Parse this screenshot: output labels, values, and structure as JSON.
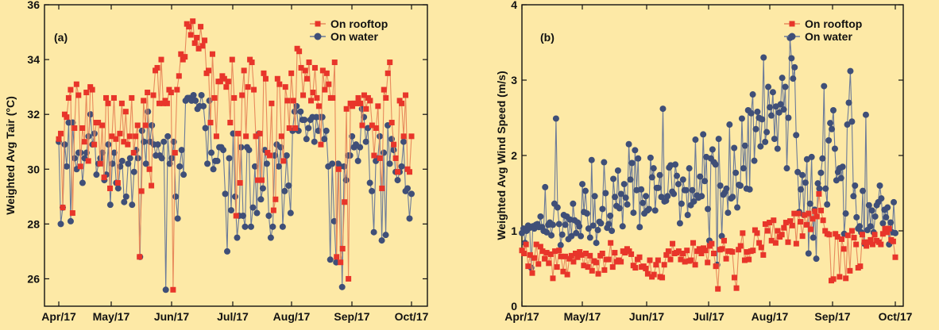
{
  "colors": {
    "background": "#fde9a6",
    "rooftop": "#e8352a",
    "water": "#3f4f78",
    "line_rooftop": "#e88a5c",
    "line_water": "#6b7a99"
  },
  "chart_data": [
    {
      "type": "line",
      "panel_label": "(a)",
      "ylabel": "Weighted Avg Tair (°C)",
      "xlabel": "",
      "ylim": [
        25,
        36
      ],
      "yticks": [
        26,
        28,
        30,
        32,
        34,
        36
      ],
      "x_tick_labels": [
        "Apr/17",
        "May/17",
        "Jun/17",
        "Jul/17",
        "Aug/17",
        "Sep/17",
        "Oct/17"
      ],
      "x_range_days": [
        0,
        183
      ],
      "legend_placement": "top-right",
      "series": [
        {
          "name": "On rooftop",
          "marker": "square",
          "values": [
            31.1,
            31.3,
            28.6,
            32.0,
            31.9,
            32.6,
            32.9,
            28.4,
            31.5,
            33.1,
            32.7,
            30.1,
            31.5,
            31.0,
            32.8,
            30.3,
            33.0,
            32.9,
            30.9,
            31.7,
            31.7,
            30.2,
            31.6,
            29.7,
            32.6,
            32.4,
            29.3,
            31.2,
            32.6,
            31.1,
            29.5,
            31.3,
            32.4,
            31.0,
            32.1,
            30.9,
            31.2,
            32.6,
            30.6,
            31.2,
            31.6,
            26.8,
            29.2,
            32.5,
            31.6,
            32.8,
            30.0,
            29.4,
            32.7,
            33.6,
            33.7,
            32.4,
            34.0,
            32.4,
            32.5,
            32.4,
            32.9,
            32.8,
            25.6,
            30.6,
            32.9,
            33.4,
            34.2,
            34.0,
            34.1,
            35.3,
            35.2,
            34.9,
            35.4,
            34.6,
            34.8,
            34.4,
            35.2,
            34.5,
            34.7,
            33.5,
            33.6,
            31.7,
            34.2,
            32.6,
            31.2,
            33.2,
            33.2,
            33.4,
            33.3,
            33.0,
            33.2,
            31.7,
            34.0,
            32.6,
            28.3,
            31.3,
            29.5,
            32.7,
            33.6,
            31.2,
            33.0,
            34.0,
            33.9,
            32.9,
            31.2,
            29.6,
            31.3,
            29.6,
            33.5,
            33.3,
            30.6,
            30.5,
            32.4,
            28.5,
            28.9,
            33.3,
            33.1,
            31.2,
            30.3,
            33.0,
            32.5,
            31.5,
            33.5,
            32.5,
            31.5,
            34.4,
            34.3,
            33.7,
            32.7,
            33.6,
            33.3,
            33.9,
            32.5,
            32.8,
            33.7,
            32.6,
            32.3,
            30.9,
            33.6,
            32.9,
            33.5,
            33.1,
            32.6,
            32.6,
            33.9,
            26.8,
            30.0,
            26.6,
            27.1,
            28.8,
            32.2,
            26.0,
            32.4,
            32.3,
            32.4,
            32.4,
            32.6,
            32.4,
            31.6,
            32.7,
            32.2,
            32.6,
            32.5,
            31.6,
            30.5,
            31.5,
            32.3,
            30.4,
            29.3,
            32.9,
            32.6,
            33.5,
            33.9,
            31.7,
            30.9,
            30.4,
            29.9,
            32.5,
            32.4,
            31.2,
            32.7,
            30.0,
            29.9,
            31.2
          ]
        },
        {
          "name": "On water",
          "marker": "circle",
          "values": [
            31.0,
            28.0,
            28.6,
            30.9,
            30.1,
            31.7,
            28.1,
            31.7,
            30.4,
            30.0,
            30.6,
            30.6,
            29.5,
            30.4,
            30.6,
            31.2,
            32.0,
            30.9,
            31.3,
            29.8,
            30.2,
            30.4,
            30.6,
            29.6,
            29.8,
            30.9,
            28.7,
            30.2,
            30.6,
            29.5,
            29.3,
            30.1,
            30.3,
            28.8,
            29.0,
            30.2,
            30.4,
            28.7,
            29.9,
            30.7,
            30.4,
            26.8,
            31.4,
            31.0,
            30.2,
            32.1,
            31.0,
            31.6,
            30.9,
            30.5,
            30.9,
            30.5,
            30.4,
            31.0,
            25.6,
            31.2,
            30.2,
            30.4,
            31.0,
            29.0,
            28.2,
            30.1,
            30.7,
            29.8,
            32.5,
            32.6,
            32.6,
            32.5,
            32.7,
            32.5,
            32.2,
            32.3,
            32.7,
            32.3,
            31.5,
            30.2,
            32.5,
            30.6,
            30.0,
            30.3,
            30.3,
            30.8,
            30.8,
            30.7,
            29.1,
            27.0,
            30.4,
            28.5,
            31.3,
            29.0,
            27.5,
            28.3,
            30.8,
            28.3,
            27.9,
            30.8,
            30.7,
            27.9,
            28.6,
            30.1,
            28.4,
            31.3,
            28.9,
            29.3,
            30.7,
            30.2,
            28.3,
            27.5,
            27.9,
            30.5,
            30.9,
            30.1,
            30.8,
            27.9,
            29.2,
            30.5,
            29.4,
            28.4,
            31.4,
            32.1,
            32.3,
            31.4,
            32.1,
            31.8,
            31.8,
            31.1,
            31.5,
            31.8,
            31.9,
            31.0,
            31.9,
            31.4,
            31.9,
            31.9,
            31.1,
            31.4,
            30.1,
            26.7,
            30.2,
            28.1,
            26.6,
            30.2,
            30.1,
            25.7,
            30.1,
            29.6,
            30.5,
            30.5,
            31.2,
            30.8,
            30.9,
            30.3,
            30.8,
            32.2,
            31.9,
            31.0,
            31.5,
            29.5,
            29.2,
            27.7,
            30.3,
            30.4,
            31.2,
            27.4,
            30.6,
            27.6,
            31.6,
            30.2,
            31.1,
            30.7,
            29.9,
            29.6,
            29.9,
            30.1,
            31.0,
            29.2,
            29.3,
            28.2,
            29.1
          ]
        }
      ]
    },
    {
      "type": "line",
      "panel_label": "(b)",
      "ylabel": "Weighted Avg Wind Speed (m/s)",
      "xlabel": "",
      "ylim": [
        0,
        4
      ],
      "yticks": [
        0,
        1,
        2,
        3,
        4
      ],
      "x_tick_labels": [
        "Apr/17",
        "May/17",
        "Jun/17",
        "Jul/17",
        "Aug/17",
        "Sep/17",
        "Oct/17"
      ],
      "x_range_days": [
        0,
        183
      ],
      "legend_placement": "top-right",
      "series": [
        {
          "name": "On rooftop",
          "marker": "square",
          "values": [
            0.74,
            0.7,
            0.82,
            0.53,
            0.68,
            0.44,
            0.64,
            0.82,
            0.56,
            0.79,
            0.73,
            0.63,
            0.71,
            0.57,
            0.69,
            0.37,
            0.73,
            0.52,
            0.74,
            0.66,
            0.46,
            0.66,
            0.42,
            0.63,
            0.67,
            0.59,
            0.7,
            0.65,
            0.72,
            0.68,
            0.54,
            0.7,
            0.52,
            0.67,
            0.47,
            0.6,
            0.58,
            0.43,
            0.67,
            0.7,
            0.48,
            0.62,
            0.62,
            0.84,
            0.52,
            0.71,
            0.59,
            0.61,
            0.59,
            0.73,
            0.71,
            0.76,
            0.73,
            0.69,
            0.54,
            0.51,
            0.62,
            0.65,
            0.52,
            0.53,
            0.5,
            0.43,
            0.61,
            0.39,
            0.42,
            0.55,
            0.61,
            0.39,
            0.38,
            0.55,
            0.68,
            0.73,
            0.62,
            0.83,
            0.7,
            0.71,
            0.73,
            0.62,
            0.7,
            0.59,
            0.74,
            0.6,
            0.61,
            0.84,
            0.55,
            0.73,
            0.76,
            0.7,
            0.77,
            0.74,
            0.58,
            0.8,
            0.83,
            0.7,
            0.53,
            0.23,
            0.75,
            0.76,
            0.87,
            0.63,
            0.73,
            0.73,
            0.72,
            0.38,
            0.24,
            0.75,
            0.8,
            0.97,
            0.61,
            0.72,
            0.62,
            0.73,
            0.74,
            1.01,
            0.97,
            0.84,
            0.78,
            0.68,
            1.09,
            1.0,
            1.11,
            0.87,
            1.14,
            0.84,
            1.0,
            0.92,
            0.95,
            1.04,
            1.11,
            0.85,
            1.13,
            1.07,
            1.23,
            0.83,
            1.23,
            1.12,
            0.93,
            1.21,
            1.08,
            1.23,
            1.02,
            1.16,
            1.26,
            1.19,
            1.49,
            1.27,
            1.14,
            1.0,
            0.96,
            0.95,
            0.34,
            0.36,
            0.96,
            0.92,
            0.39,
            0.89,
            0.76,
            0.37,
            0.94,
            0.47,
            1.0,
            0.91,
            0.82,
            0.51,
            0.53,
            0.95,
            0.85,
            0.8,
            0.85,
            0.88,
            0.82,
            0.95,
            0.87,
            0.85,
            0.82,
            0.96,
            1.03,
            0.98,
            1.03,
            0.88,
            0.86,
            0.65
          ]
        },
        {
          "name": "On water",
          "marker": "circle",
          "values": [
            0.97,
            1.03,
            0.84,
            1.0,
            1.07,
            1.04,
            0.51,
            1.06,
            1.03,
            1.08,
            1.09,
            1.05,
            1.19,
            1.05,
            1.0,
            1.58,
            0.98,
            1.08,
            1.11,
            0.94,
            1.08,
            1.36,
            2.49,
            1.31,
            1.09,
            0.81,
            0.95,
            1.21,
            1.08,
            1.19,
            0.89,
            1.15,
            0.93,
            1.36,
            1.14,
            0.97,
            1.11,
            1.06,
            0.93,
            1.62,
            1.25,
            1.53,
            1.23,
            1.03,
            0.91,
            1.94,
            1.07,
            1.46,
            0.84,
            1.01,
            1.12,
            1.1,
            1.29,
            1.91,
            1.5,
            1.04,
            1.09,
            1.2,
            1.0,
            1.69,
            1.45,
            1.33,
            1.8,
            1.3,
            1.49,
            1.06,
            1.62,
            1.44,
            1.35,
            2.15,
            1.68,
            1.9,
            1.24,
            2.07,
            1.54,
            1.96,
            1.05,
            1.55,
            1.37,
            1.23,
            1.46,
            1.27,
            1.29,
            1.97,
            1.71,
            1.83,
            1.27,
            1.57,
            1.57,
            1.74,
            1.45,
            2.62,
            1.39,
            1.4,
            1.46,
            1.84,
            1.87,
            1.52,
            1.49,
            1.88,
            1.73,
            1.62,
            1.1,
            1.36,
            1.68,
            1.54,
            1.54,
            1.21,
            1.83,
            1.34,
            1.54,
            1.39,
            2.21,
            1.47,
            1.44,
            1.72,
            1.46,
            2.28,
            1.66,
            1.98,
            1.29,
            0.87,
            1.96,
            2.08,
            1.91,
            1.88,
            0.55,
            2.22,
            1.6,
            0.93,
            1.48,
            1.51,
            1.56,
            1.24,
            2.41,
            1.43,
            1.45,
            2.1,
            1.77,
            1.31,
            1.61,
            1.6,
            2.49,
            1.83,
            2.13,
            1.56,
            2.6,
            1.55,
            2.56,
            2.81,
            1.93,
            2.35,
            2.58,
            2.5,
            2.12,
            2.48,
            3.3,
            2.18,
            2.31,
            2.91,
            2.64,
            2.53,
            2.84,
            2.22,
            2.65,
            2.09,
            2.57,
            2.68,
            3.03,
            2.61,
            2.91,
            1.83,
            2.5,
            3.56,
            3.29,
            3.02,
            3.17,
            2.27,
            1.78,
            1.25,
            1.55,
            1.74,
            1.21,
            1.64,
            1.95,
            0.7,
            1.36,
            1.98,
            0.91,
            1.28,
            0.63,
            1.63,
            1.56,
            1.77,
            1.96,
            2.92,
            1.56,
            1.35,
            2.2,
            2.43,
            2.35,
            2.6,
            2.09,
            1.67,
            1.78,
            1.83,
            1.7,
            1.85,
            0.96,
            1.23,
            2.41,
            2.7,
            3.12,
            2.45,
            1.46,
            1.6,
            1.18,
            1.03,
            1.06,
            0.98,
            1.53,
            0.83,
            2.54,
            1.01,
            1.34,
            1.06,
            1.27,
            0.98,
            1.19,
            1.34,
            1.38,
            1.6,
            1.43,
            1.1,
            1.28,
            1.18,
            1.31,
            0.82,
            1.11,
            0.98,
            1.38,
            0.97
          ]
        }
      ]
    }
  ]
}
